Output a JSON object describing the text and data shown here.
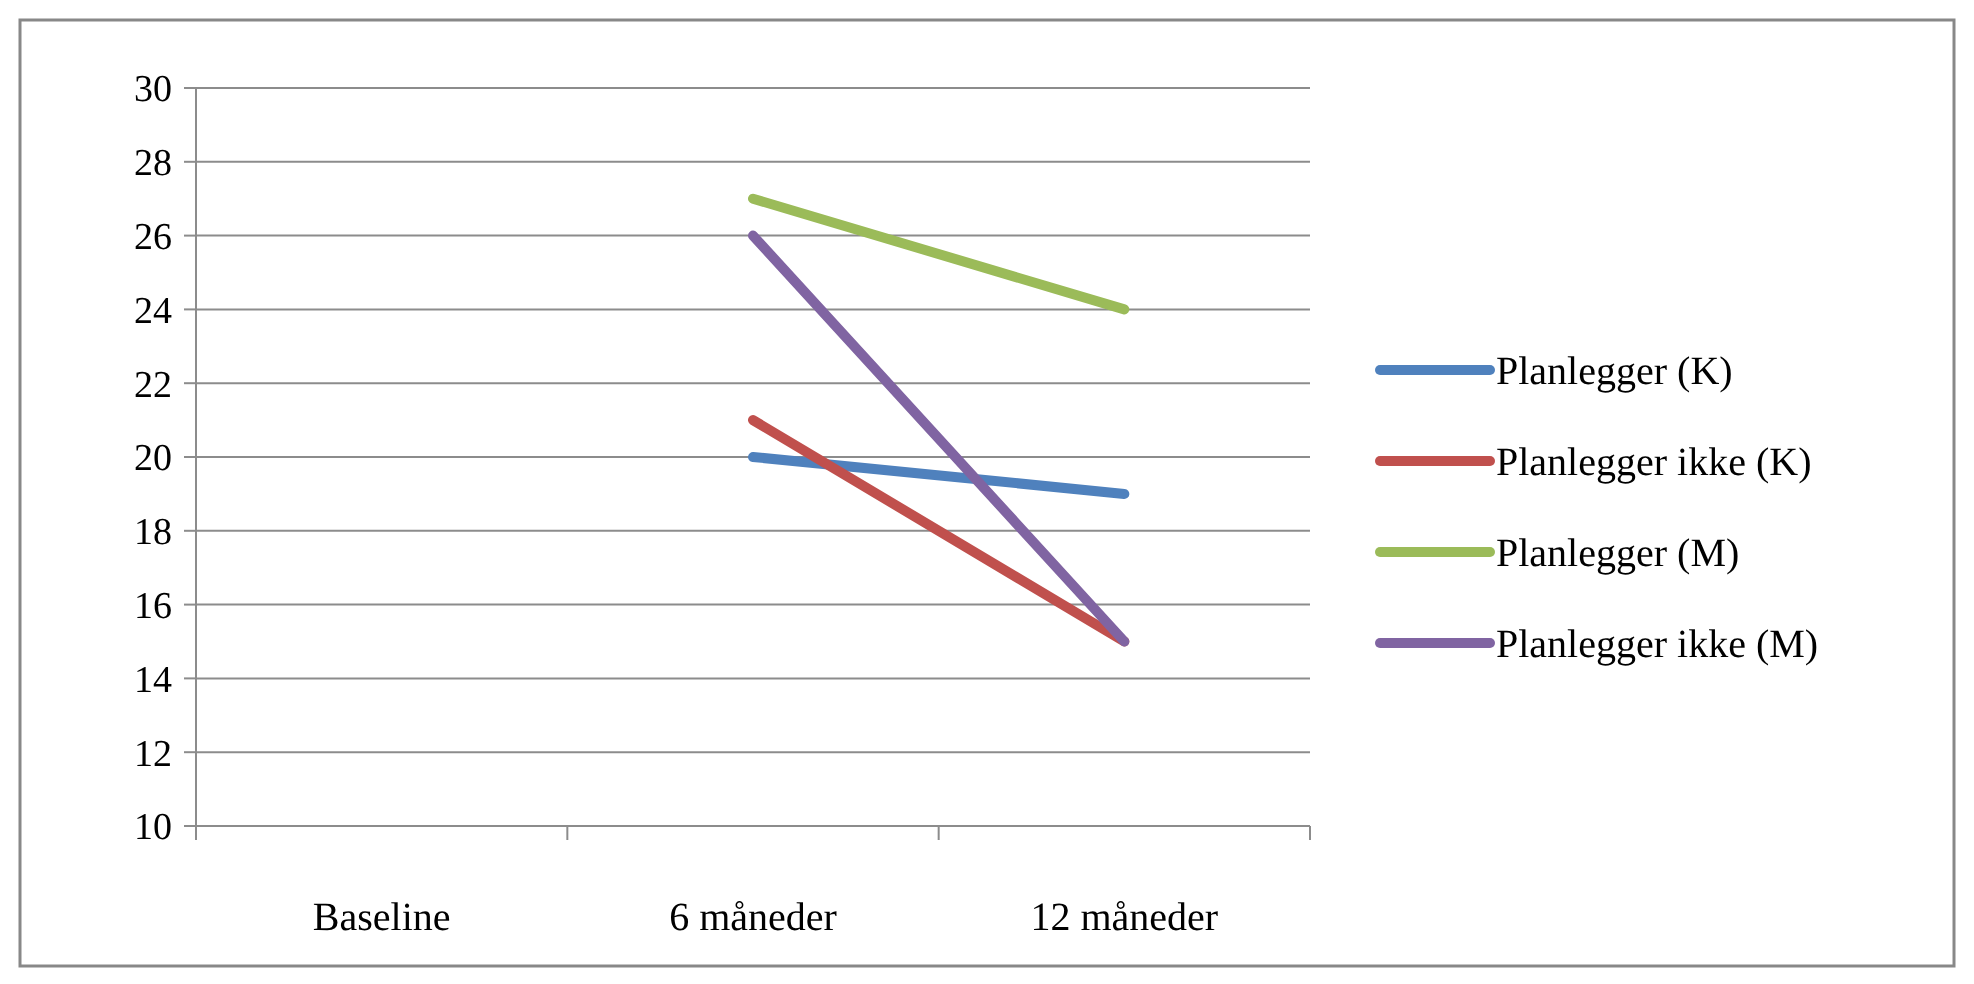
{
  "chart_data": {
    "type": "line",
    "categories": [
      "Baseline",
      "6 måneder",
      "12 måneder"
    ],
    "series": [
      {
        "name": "Planlegger (K)",
        "color": "#4f81bd",
        "values": [
          null,
          20,
          19
        ]
      },
      {
        "name": "Planlegger ikke (K)",
        "color": "#c0504d",
        "values": [
          null,
          21,
          15
        ]
      },
      {
        "name": "Planlegger (M)",
        "color": "#9bbb59",
        "values": [
          null,
          27,
          24
        ]
      },
      {
        "name": "Planlegger ikke (M)",
        "color": "#8064a2",
        "values": [
          null,
          26,
          15
        ]
      }
    ],
    "ylim": [
      10,
      30
    ],
    "yticks": [
      10,
      12,
      14,
      16,
      18,
      20,
      22,
      24,
      26,
      28,
      30
    ],
    "grid": "y",
    "legend": "right",
    "marker": "none",
    "line_style": "solid"
  }
}
